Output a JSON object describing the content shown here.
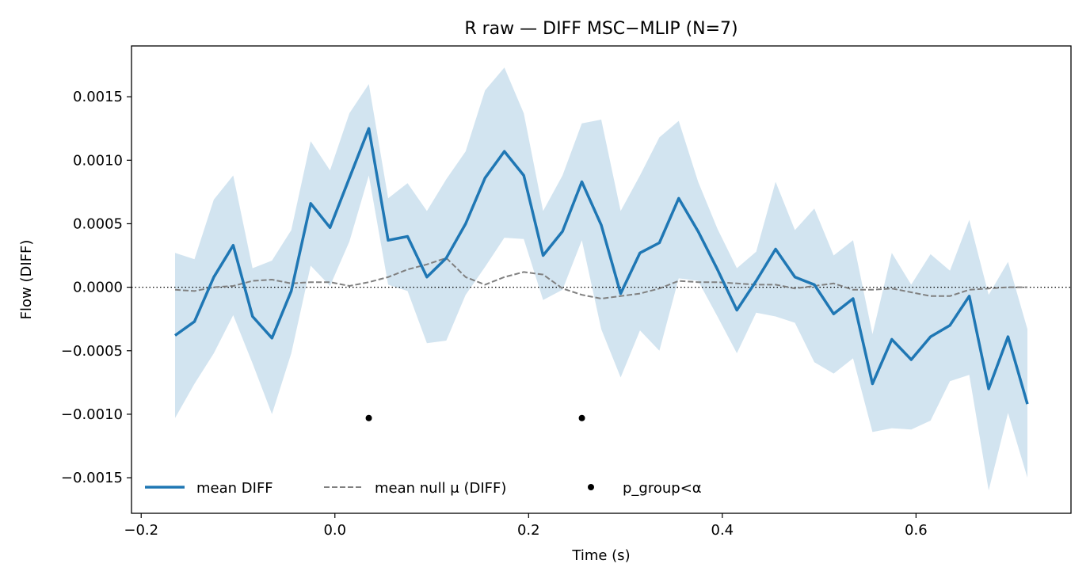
{
  "chart_data": {
    "type": "line",
    "title": "R raw — DIFF MSC−MLIP (N=7)",
    "xlabel": "Time (s)",
    "ylabel": "Flow (DIFF)",
    "xlim": [
      -0.21,
      0.76
    ],
    "ylim": [
      -0.00178,
      0.0019
    ],
    "xticks": [
      -0.2,
      0.0,
      0.2,
      0.4,
      0.6
    ],
    "xtick_labels": [
      "−0.2",
      "0.0",
      "0.2",
      "0.4",
      "0.6"
    ],
    "yticks": [
      0.0015,
      0.001,
      0.0005,
      0.0,
      -0.0005,
      -0.001,
      -0.0015
    ],
    "ytick_labels": [
      "0.0015",
      "0.0010",
      "0.0005",
      "0.0000",
      "−0.0005",
      "−0.0010",
      "−0.0015"
    ],
    "zero_line": 0.0,
    "grid": false,
    "legend_position": "bottom-left",
    "x": [
      -0.165,
      -0.145,
      -0.125,
      -0.105,
      -0.085,
      -0.065,
      -0.045,
      -0.025,
      -0.005,
      0.015,
      0.035,
      0.055,
      0.075,
      0.095,
      0.115,
      0.135,
      0.155,
      0.175,
      0.195,
      0.215,
      0.235,
      0.255,
      0.275,
      0.295,
      0.315,
      0.335,
      0.355,
      0.375,
      0.395,
      0.415,
      0.435,
      0.455,
      0.475,
      0.495,
      0.515,
      0.535,
      0.555,
      0.575,
      0.595,
      0.615,
      0.635,
      0.655,
      0.675,
      0.695,
      0.715
    ],
    "series": [
      {
        "name": "mean DIFF",
        "style": "solid",
        "color": "#1f77b4",
        "values": [
          -0.00038,
          -0.00027,
          8e-05,
          0.00033,
          -0.00023,
          -0.0004,
          -3e-05,
          0.00066,
          0.00047,
          0.00086,
          0.00125,
          0.00037,
          0.0004,
          8e-05,
          0.00023,
          0.0005,
          0.00086,
          0.00107,
          0.00088,
          0.00025,
          0.00044,
          0.00083,
          0.00049,
          -5e-05,
          0.00027,
          0.00035,
          0.0007,
          0.00044,
          0.00014,
          -0.00018,
          5e-05,
          0.0003,
          8e-05,
          2e-05,
          -0.00021,
          -9e-05,
          -0.00076,
          -0.00041,
          -0.00057,
          -0.00039,
          -0.0003,
          -7e-05,
          -0.0008,
          -0.00039,
          -0.00092
        ]
      },
      {
        "name": "mean null μ (DIFF)",
        "style": "dashed",
        "color": "#808080",
        "values": [
          -2e-05,
          -3e-05,
          0.0,
          1e-05,
          5e-05,
          6e-05,
          3e-05,
          4e-05,
          4e-05,
          1e-05,
          4e-05,
          8e-05,
          0.00014,
          0.00018,
          0.00023,
          8e-05,
          2e-05,
          8e-05,
          0.00012,
          0.0001,
          -1e-05,
          -6e-05,
          -9e-05,
          -7e-05,
          -5e-05,
          -1e-05,
          5e-05,
          4e-05,
          4e-05,
          3e-05,
          2e-05,
          2e-05,
          -1e-05,
          1e-05,
          3e-05,
          -2e-05,
          -2e-05,
          -1e-05,
          -4e-05,
          -7e-05,
          -7e-05,
          -2e-05,
          -1e-05,
          0.0,
          0.0
        ]
      }
    ],
    "band": {
      "color": "#1f77b4",
      "opacity": 0.2,
      "upper": [
        0.00027,
        0.00022,
        0.00069,
        0.00088,
        0.00015,
        0.00021,
        0.00045,
        0.00115,
        0.00092,
        0.00137,
        0.0016,
        0.0007,
        0.00082,
        0.0006,
        0.00085,
        0.00107,
        0.00155,
        0.00173,
        0.00137,
        0.0006,
        0.00088,
        0.00129,
        0.00132,
        0.0006,
        0.00088,
        0.00118,
        0.00131,
        0.00083,
        0.00046,
        0.00015,
        0.00028,
        0.00083,
        0.00045,
        0.00062,
        0.00025,
        0.00037,
        -0.00037,
        0.00027,
        2e-05,
        0.00026,
        0.00013,
        0.00053,
        -6e-05,
        0.0002,
        -0.00033
      ],
      "lower": [
        -0.00103,
        -0.00076,
        -0.00052,
        -0.00022,
        -0.0006,
        -0.001,
        -0.00052,
        0.00017,
        1e-05,
        0.00036,
        0.00088,
        2e-05,
        -3e-05,
        -0.00044,
        -0.00042,
        -6e-05,
        0.00016,
        0.00039,
        0.00038,
        -0.0001,
        -2e-05,
        0.00037,
        -0.00033,
        -0.00071,
        -0.00034,
        -0.0005,
        7e-05,
        5e-05,
        -0.00023,
        -0.00052,
        -0.0002,
        -0.00023,
        -0.00028,
        -0.00059,
        -0.00068,
        -0.00056,
        -0.00114,
        -0.00111,
        -0.00112,
        -0.00105,
        -0.00074,
        -0.00069,
        -0.0016,
        -0.00099,
        -0.0015
      ]
    },
    "significant_points": {
      "name": "p_group<α",
      "color": "#000000",
      "x": [
        0.035,
        0.255
      ],
      "y": [
        -0.00103,
        -0.00103
      ]
    }
  }
}
